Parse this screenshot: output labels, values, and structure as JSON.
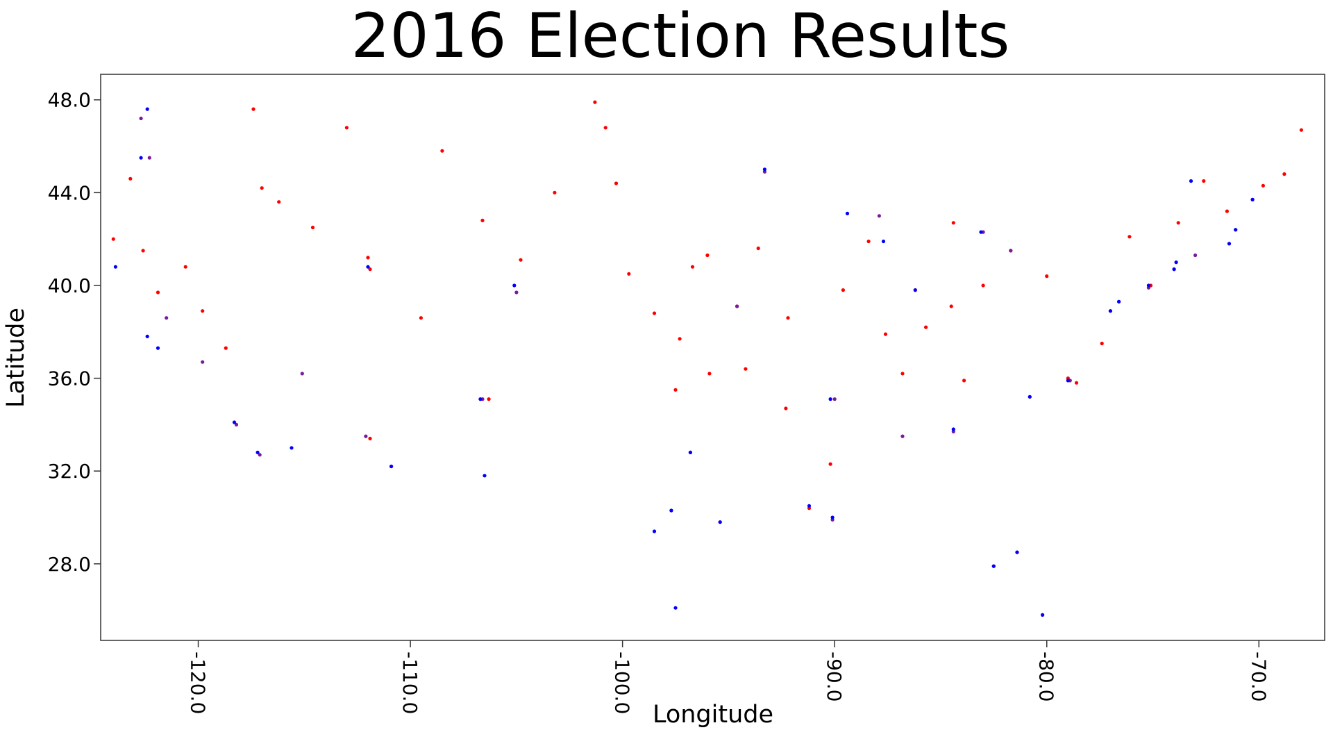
{
  "chart_data": {
    "type": "scatter",
    "title": "2016 Election Results",
    "xlabel": "Longitude",
    "ylabel": "Latitude",
    "xlim": [
      -124.6,
      -66.9
    ],
    "ylim": [
      24.7,
      49.1
    ],
    "x_ticks": [
      -120.0,
      -110.0,
      -100.0,
      -90.0,
      -80.0,
      -70.0
    ],
    "x_tick_labels": [
      "-120.0",
      "-110.0",
      "-100.0",
      "-90.0",
      "-80.0",
      "-70.0"
    ],
    "x_tick_rotation": "vertical",
    "y_ticks": [
      28.0,
      32.0,
      36.0,
      40.0,
      44.0,
      48.0
    ],
    "y_tick_labels": [
      "28.0",
      "32.0",
      "36.0",
      "40.0",
      "44.0",
      "48.0"
    ],
    "grid": false,
    "legend": "none",
    "colors": {
      "republican": "#ff0000",
      "mixed": "#7a1a9a",
      "democrat": "#0000ff"
    },
    "series": [
      {
        "color": "#ff0000",
        "points": [
          [
            -124.0,
            42.0
          ],
          [
            -123.2,
            44.6
          ],
          [
            -122.6,
            41.5
          ],
          [
            -121.9,
            39.7
          ],
          [
            -120.6,
            40.8
          ],
          [
            -119.8,
            38.9
          ],
          [
            -118.7,
            37.3
          ],
          [
            -117.4,
            47.6
          ],
          [
            -117.0,
            44.2
          ],
          [
            -116.2,
            43.6
          ],
          [
            -114.6,
            42.5
          ],
          [
            -113.0,
            46.8
          ],
          [
            -112.0,
            41.2
          ],
          [
            -111.9,
            40.7
          ],
          [
            -111.9,
            33.4
          ],
          [
            -110.9,
            32.2
          ],
          [
            -109.5,
            38.6
          ],
          [
            -108.5,
            45.8
          ],
          [
            -106.6,
            42.8
          ],
          [
            -106.3,
            35.1
          ],
          [
            -104.8,
            41.1
          ],
          [
            -103.2,
            44.0
          ],
          [
            -101.3,
            47.9
          ],
          [
            -100.8,
            46.8
          ],
          [
            -100.3,
            44.4
          ],
          [
            -99.7,
            40.5
          ],
          [
            -98.5,
            38.8
          ],
          [
            -97.5,
            35.5
          ],
          [
            -97.3,
            37.7
          ],
          [
            -96.7,
            40.8
          ],
          [
            -96.0,
            41.3
          ],
          [
            -95.9,
            36.2
          ],
          [
            -94.6,
            39.1
          ],
          [
            -94.2,
            36.4
          ],
          [
            -93.6,
            41.6
          ],
          [
            -92.3,
            34.7
          ],
          [
            -92.2,
            38.6
          ],
          [
            -91.2,
            30.4
          ],
          [
            -90.2,
            32.3
          ],
          [
            -89.6,
            39.8
          ],
          [
            -88.4,
            41.9
          ],
          [
            -87.6,
            37.9
          ],
          [
            -86.8,
            36.2
          ],
          [
            -86.2,
            39.8
          ],
          [
            -85.7,
            38.2
          ],
          [
            -84.5,
            39.1
          ],
          [
            -84.4,
            42.7
          ],
          [
            -83.9,
            35.9
          ],
          [
            -83.0,
            40.0
          ],
          [
            -82.5,
            27.9
          ],
          [
            -81.7,
            41.5
          ],
          [
            -81.4,
            28.5
          ],
          [
            -80.8,
            35.2
          ],
          [
            -80.0,
            40.4
          ],
          [
            -79.0,
            36.0
          ],
          [
            -78.6,
            35.8
          ],
          [
            -77.4,
            37.5
          ],
          [
            -76.6,
            39.3
          ],
          [
            -76.1,
            42.1
          ],
          [
            -75.1,
            40.0
          ],
          [
            -73.8,
            42.7
          ],
          [
            -72.6,
            44.5
          ],
          [
            -71.5,
            43.2
          ],
          [
            -69.8,
            44.3
          ],
          [
            -68.8,
            44.8
          ],
          [
            -68.0,
            46.7
          ]
        ]
      },
      {
        "color": "#7a1a9a",
        "points": [
          [
            -122.7,
            47.2
          ],
          [
            -122.3,
            45.5
          ],
          [
            -121.5,
            38.6
          ],
          [
            -119.8,
            36.7
          ],
          [
            -118.2,
            34.0
          ],
          [
            -117.1,
            32.7
          ],
          [
            -115.1,
            36.2
          ],
          [
            -112.1,
            33.5
          ],
          [
            -106.6,
            35.1
          ],
          [
            -105.0,
            39.7
          ],
          [
            -97.7,
            30.3
          ],
          [
            -96.8,
            32.8
          ],
          [
            -95.4,
            29.8
          ],
          [
            -94.6,
            39.1
          ],
          [
            -93.3,
            44.9
          ],
          [
            -90.1,
            29.9
          ],
          [
            -90.0,
            35.1
          ],
          [
            -87.9,
            43.0
          ],
          [
            -86.8,
            33.5
          ],
          [
            -84.4,
            33.7
          ],
          [
            -83.0,
            42.3
          ],
          [
            -81.7,
            41.5
          ],
          [
            -80.2,
            25.8
          ],
          [
            -78.9,
            35.9
          ],
          [
            -77.0,
            38.9
          ],
          [
            -75.2,
            39.9
          ],
          [
            -74.0,
            40.7
          ],
          [
            -73.0,
            41.3
          ],
          [
            -71.4,
            41.8
          ],
          [
            -71.1,
            42.4
          ],
          [
            -70.3,
            43.7
          ]
        ]
      },
      {
        "color": "#0000ff",
        "points": [
          [
            -122.4,
            47.6
          ],
          [
            -122.7,
            45.5
          ],
          [
            -123.9,
            40.8
          ],
          [
            -122.4,
            37.8
          ],
          [
            -121.9,
            37.3
          ],
          [
            -118.3,
            34.1
          ],
          [
            -117.2,
            32.8
          ],
          [
            -115.6,
            33.0
          ],
          [
            -112.0,
            40.8
          ],
          [
            -110.9,
            32.2
          ],
          [
            -106.7,
            35.1
          ],
          [
            -105.1,
            40.0
          ],
          [
            -106.5,
            31.8
          ],
          [
            -98.5,
            29.4
          ],
          [
            -97.7,
            30.3
          ],
          [
            -97.5,
            26.1
          ],
          [
            -96.8,
            32.8
          ],
          [
            -95.4,
            29.8
          ],
          [
            -93.3,
            45.0
          ],
          [
            -91.2,
            30.5
          ],
          [
            -90.2,
            35.1
          ],
          [
            -90.1,
            30.0
          ],
          [
            -89.4,
            43.1
          ],
          [
            -87.7,
            41.9
          ],
          [
            -86.2,
            39.8
          ],
          [
            -84.4,
            33.8
          ],
          [
            -83.1,
            42.3
          ],
          [
            -82.5,
            27.9
          ],
          [
            -81.4,
            28.5
          ],
          [
            -80.2,
            25.8
          ],
          [
            -80.8,
            35.2
          ],
          [
            -79.0,
            35.9
          ],
          [
            -77.0,
            38.9
          ],
          [
            -76.6,
            39.3
          ],
          [
            -75.2,
            40.0
          ],
          [
            -74.0,
            40.7
          ],
          [
            -73.9,
            41.0
          ],
          [
            -73.2,
            44.5
          ],
          [
            -71.1,
            42.4
          ],
          [
            -71.4,
            41.8
          ],
          [
            -70.3,
            43.7
          ]
        ]
      }
    ]
  }
}
